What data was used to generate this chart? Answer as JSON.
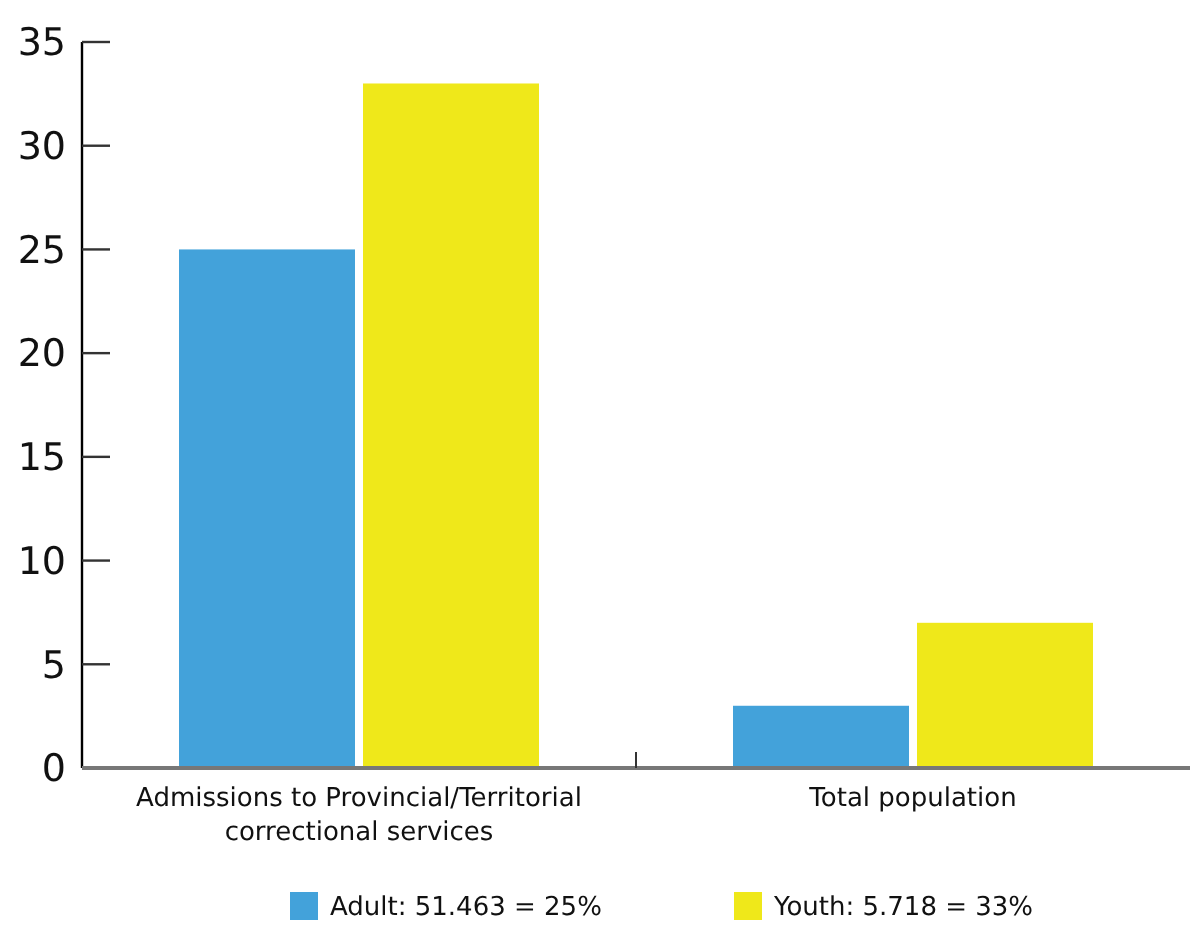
{
  "chart_data": {
    "type": "bar",
    "categories": [
      "Admissions to Provincial/Territorial correctional services",
      "Total population"
    ],
    "series": [
      {
        "name": "Adult: 51.463 = 25%",
        "color": "#43a2da",
        "values": [
          25,
          3
        ]
      },
      {
        "name": "Youth: 5.718 = 33%",
        "color": "#efe81a",
        "values": [
          33,
          7
        ]
      }
    ],
    "ylim": [
      0,
      35
    ],
    "yticks": [
      0,
      5,
      10,
      15,
      20,
      25,
      30,
      35
    ],
    "grid": false,
    "legend": "bottom"
  }
}
